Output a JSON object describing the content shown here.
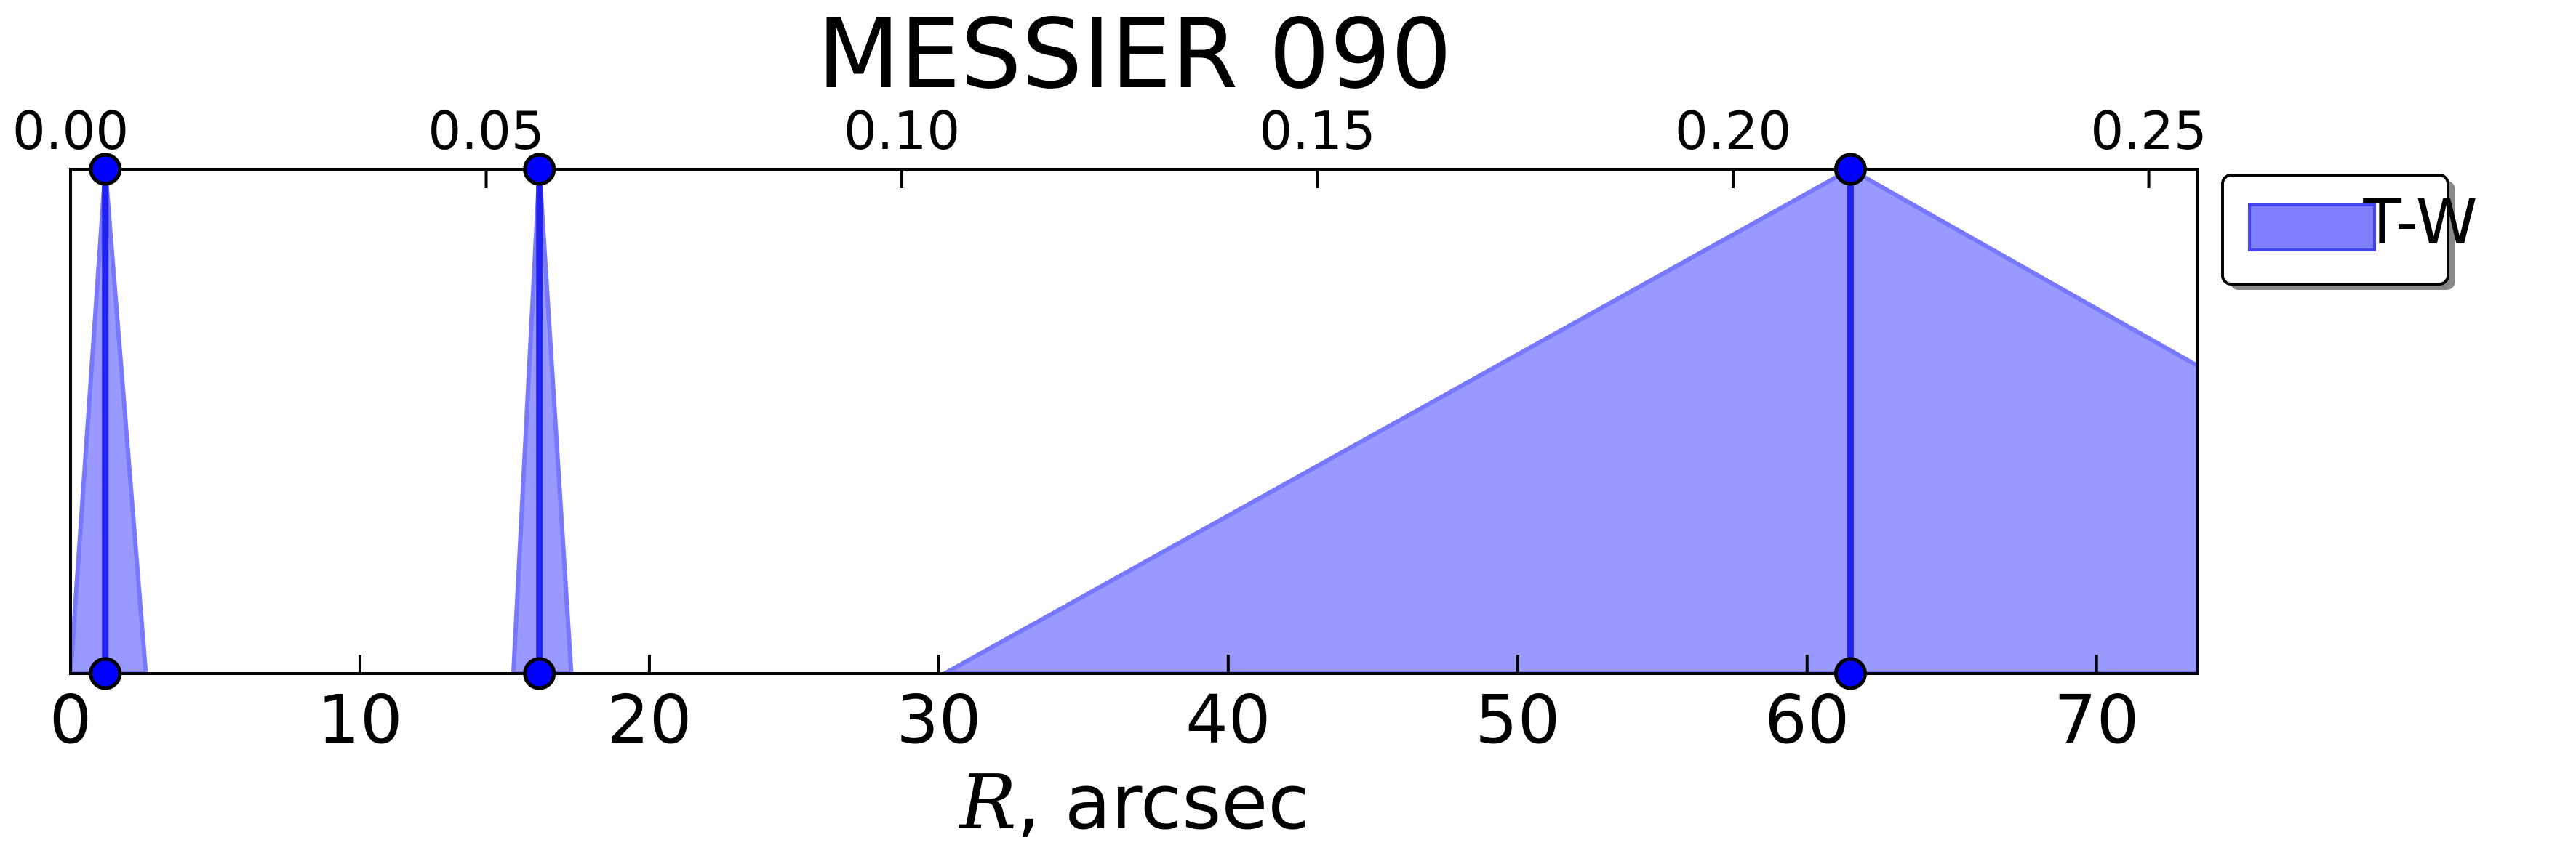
{
  "chart_data": {
    "type": "area",
    "title": "MESSIER 090",
    "xlabel_var": "R",
    "xlabel_rest": ", arcsec",
    "xlim": [
      0,
      73.5
    ],
    "xticks": [
      0,
      10,
      20,
      30,
      40,
      50,
      60,
      70
    ],
    "xtick_labels": [
      "0",
      "10",
      "20",
      "30",
      "40",
      "50",
      "60",
      "70"
    ],
    "top_axis": {
      "xlim": [
        0,
        0.2559
      ],
      "ticks": [
        0.0,
        0.05,
        0.1,
        0.15,
        0.2,
        0.25
      ],
      "tick_labels": [
        "0.00",
        "0.05",
        "0.10",
        "0.15",
        "0.20",
        "0.25"
      ]
    },
    "ylim": [
      0,
      1
    ],
    "yticks_visible": false,
    "legend": {
      "position": "outside-right-top",
      "entries": [
        {
          "label": "T-W"
        }
      ]
    },
    "series": [
      {
        "name": "T-W",
        "color": "#0000ff",
        "fill_color": "#9999ff",
        "regions": [
          {
            "polygon": [
              [
                0.0,
                0.0
              ],
              [
                1.2,
                1.0
              ],
              [
                2.6,
                0.0
              ]
            ]
          },
          {
            "polygon": [
              [
                15.3,
                0.0
              ],
              [
                16.2,
                1.0
              ],
              [
                17.3,
                0.0
              ]
            ]
          },
          {
            "polygon": [
              [
                30.2,
                0.0
              ],
              [
                61.5,
                1.0
              ],
              [
                73.5,
                0.61
              ],
              [
                73.5,
                0.0
              ]
            ]
          }
        ],
        "markers": [
          {
            "x": 1.2,
            "y_low": 0.0,
            "y_high": 1.0
          },
          {
            "x": 16.2,
            "y_low": 0.0,
            "y_high": 1.0
          },
          {
            "x": 61.5,
            "y_low": 0.0,
            "y_high": 1.0
          }
        ]
      }
    ],
    "grid": false
  }
}
